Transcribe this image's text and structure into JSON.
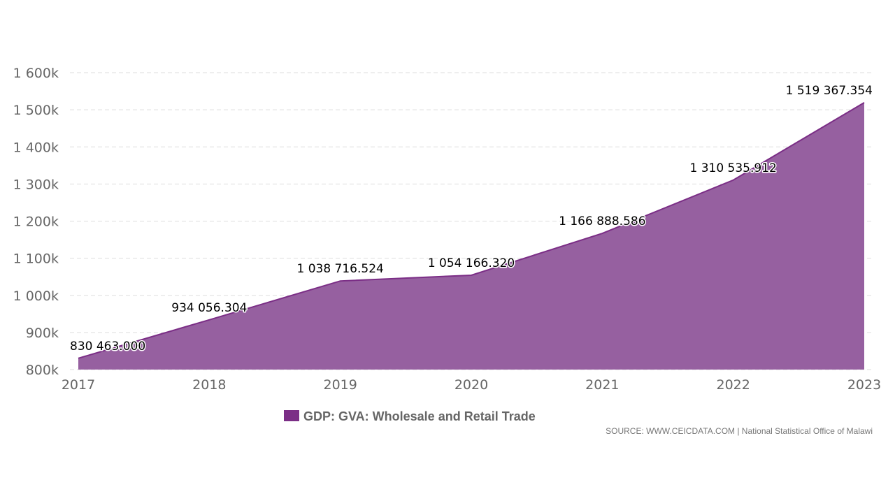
{
  "chart_data": {
    "type": "area",
    "title": "",
    "xlabel": "",
    "ylabel": "",
    "categories": [
      "2017",
      "2018",
      "2019",
      "2020",
      "2021",
      "2022",
      "2023"
    ],
    "series": [
      {
        "name": "GDP: GVA: Wholesale and Retail Trade",
        "values": [
          830463.0,
          934056.304,
          1038716.524,
          1054166.32,
          1166888.586,
          1310535.912,
          1519367.354
        ],
        "data_labels": [
          "830 463.000",
          "934 056.304",
          "1 038 716.524",
          "1 054 166.320",
          "1 166 888.586",
          "1 310 535.912",
          "1 519 367.354"
        ],
        "line_color": "#7b2e86",
        "fill_color": "#9660a0"
      }
    ],
    "ylim": [
      800000,
      1600000
    ],
    "yticks": [
      800000,
      900000,
      1000000,
      1100000,
      1200000,
      1300000,
      1400000,
      1500000,
      1600000
    ],
    "ytick_labels": [
      "800k",
      "900k",
      "1 000k",
      "1 100k",
      "1 200k",
      "1 300k",
      "1 400k",
      "1 500k",
      "1 600k"
    ],
    "grid": "horizontal dashed",
    "legend_position": "bottom-center",
    "source": "SOURCE: WWW.CEICDATA.COM | National Statistical Office of Malawi"
  }
}
